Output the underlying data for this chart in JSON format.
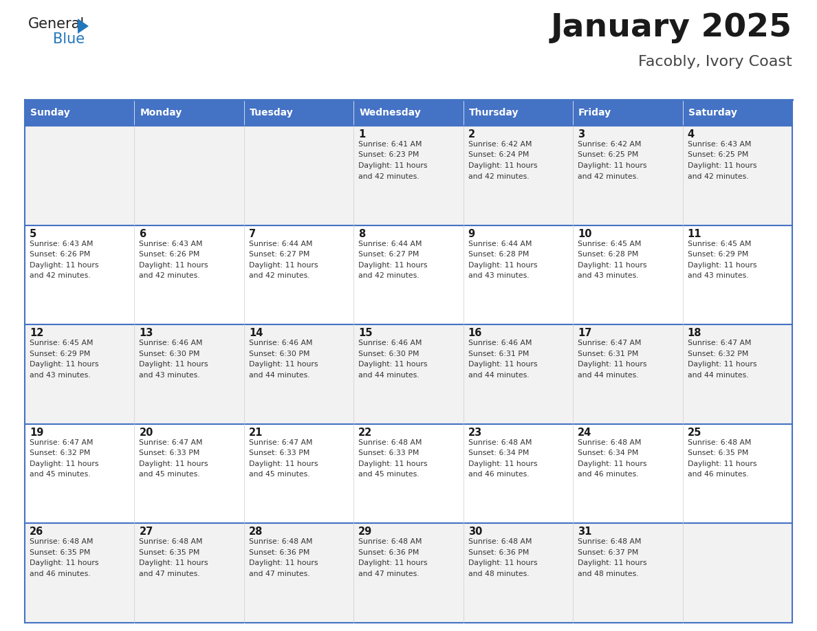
{
  "title": "January 2025",
  "subtitle": "Facobly, Ivory Coast",
  "header_bg_color": "#4472C4",
  "header_text_color": "#FFFFFF",
  "day_names": [
    "Sunday",
    "Monday",
    "Tuesday",
    "Wednesday",
    "Thursday",
    "Friday",
    "Saturday"
  ],
  "row_color_odd": "#F2F2F2",
  "row_color_even": "#FFFFFF",
  "grid_line_color": "#4472C4",
  "text_color": "#333333",
  "calendar": [
    [
      {
        "day": "",
        "sunrise": "",
        "sunset": "",
        "daylight_hours": "",
        "daylight_minutes": ""
      },
      {
        "day": "",
        "sunrise": "",
        "sunset": "",
        "daylight_hours": "",
        "daylight_minutes": ""
      },
      {
        "day": "",
        "sunrise": "",
        "sunset": "",
        "daylight_hours": "",
        "daylight_minutes": ""
      },
      {
        "day": "1",
        "sunrise": "6:41 AM",
        "sunset": "6:23 PM",
        "daylight_hours": "11",
        "daylight_minutes": "42"
      },
      {
        "day": "2",
        "sunrise": "6:42 AM",
        "sunset": "6:24 PM",
        "daylight_hours": "11",
        "daylight_minutes": "42"
      },
      {
        "day": "3",
        "sunrise": "6:42 AM",
        "sunset": "6:25 PM",
        "daylight_hours": "11",
        "daylight_minutes": "42"
      },
      {
        "day": "4",
        "sunrise": "6:43 AM",
        "sunset": "6:25 PM",
        "daylight_hours": "11",
        "daylight_minutes": "42"
      }
    ],
    [
      {
        "day": "5",
        "sunrise": "6:43 AM",
        "sunset": "6:26 PM",
        "daylight_hours": "11",
        "daylight_minutes": "42"
      },
      {
        "day": "6",
        "sunrise": "6:43 AM",
        "sunset": "6:26 PM",
        "daylight_hours": "11",
        "daylight_minutes": "42"
      },
      {
        "day": "7",
        "sunrise": "6:44 AM",
        "sunset": "6:27 PM",
        "daylight_hours": "11",
        "daylight_minutes": "42"
      },
      {
        "day": "8",
        "sunrise": "6:44 AM",
        "sunset": "6:27 PM",
        "daylight_hours": "11",
        "daylight_minutes": "42"
      },
      {
        "day": "9",
        "sunrise": "6:44 AM",
        "sunset": "6:28 PM",
        "daylight_hours": "11",
        "daylight_minutes": "43"
      },
      {
        "day": "10",
        "sunrise": "6:45 AM",
        "sunset": "6:28 PM",
        "daylight_hours": "11",
        "daylight_minutes": "43"
      },
      {
        "day": "11",
        "sunrise": "6:45 AM",
        "sunset": "6:29 PM",
        "daylight_hours": "11",
        "daylight_minutes": "43"
      }
    ],
    [
      {
        "day": "12",
        "sunrise": "6:45 AM",
        "sunset": "6:29 PM",
        "daylight_hours": "11",
        "daylight_minutes": "43"
      },
      {
        "day": "13",
        "sunrise": "6:46 AM",
        "sunset": "6:30 PM",
        "daylight_hours": "11",
        "daylight_minutes": "43"
      },
      {
        "day": "14",
        "sunrise": "6:46 AM",
        "sunset": "6:30 PM",
        "daylight_hours": "11",
        "daylight_minutes": "44"
      },
      {
        "day": "15",
        "sunrise": "6:46 AM",
        "sunset": "6:30 PM",
        "daylight_hours": "11",
        "daylight_minutes": "44"
      },
      {
        "day": "16",
        "sunrise": "6:46 AM",
        "sunset": "6:31 PM",
        "daylight_hours": "11",
        "daylight_minutes": "44"
      },
      {
        "day": "17",
        "sunrise": "6:47 AM",
        "sunset": "6:31 PM",
        "daylight_hours": "11",
        "daylight_minutes": "44"
      },
      {
        "day": "18",
        "sunrise": "6:47 AM",
        "sunset": "6:32 PM",
        "daylight_hours": "11",
        "daylight_minutes": "44"
      }
    ],
    [
      {
        "day": "19",
        "sunrise": "6:47 AM",
        "sunset": "6:32 PM",
        "daylight_hours": "11",
        "daylight_minutes": "45"
      },
      {
        "day": "20",
        "sunrise": "6:47 AM",
        "sunset": "6:33 PM",
        "daylight_hours": "11",
        "daylight_minutes": "45"
      },
      {
        "day": "21",
        "sunrise": "6:47 AM",
        "sunset": "6:33 PM",
        "daylight_hours": "11",
        "daylight_minutes": "45"
      },
      {
        "day": "22",
        "sunrise": "6:48 AM",
        "sunset": "6:33 PM",
        "daylight_hours": "11",
        "daylight_minutes": "45"
      },
      {
        "day": "23",
        "sunrise": "6:48 AM",
        "sunset": "6:34 PM",
        "daylight_hours": "11",
        "daylight_minutes": "46"
      },
      {
        "day": "24",
        "sunrise": "6:48 AM",
        "sunset": "6:34 PM",
        "daylight_hours": "11",
        "daylight_minutes": "46"
      },
      {
        "day": "25",
        "sunrise": "6:48 AM",
        "sunset": "6:35 PM",
        "daylight_hours": "11",
        "daylight_minutes": "46"
      }
    ],
    [
      {
        "day": "26",
        "sunrise": "6:48 AM",
        "sunset": "6:35 PM",
        "daylight_hours": "11",
        "daylight_minutes": "46"
      },
      {
        "day": "27",
        "sunrise": "6:48 AM",
        "sunset": "6:35 PM",
        "daylight_hours": "11",
        "daylight_minutes": "47"
      },
      {
        "day": "28",
        "sunrise": "6:48 AM",
        "sunset": "6:36 PM",
        "daylight_hours": "11",
        "daylight_minutes": "47"
      },
      {
        "day": "29",
        "sunrise": "6:48 AM",
        "sunset": "6:36 PM",
        "daylight_hours": "11",
        "daylight_minutes": "47"
      },
      {
        "day": "30",
        "sunrise": "6:48 AM",
        "sunset": "6:36 PM",
        "daylight_hours": "11",
        "daylight_minutes": "48"
      },
      {
        "day": "31",
        "sunrise": "6:48 AM",
        "sunset": "6:37 PM",
        "daylight_hours": "11",
        "daylight_minutes": "48"
      },
      {
        "day": "",
        "sunrise": "",
        "sunset": "",
        "daylight_hours": "",
        "daylight_minutes": ""
      }
    ]
  ],
  "logo_general_color": "#222222",
  "logo_blue_color": "#2277BB",
  "logo_triangle_color": "#2277BB",
  "fig_width": 11.88,
  "fig_height": 9.18,
  "dpi": 100
}
